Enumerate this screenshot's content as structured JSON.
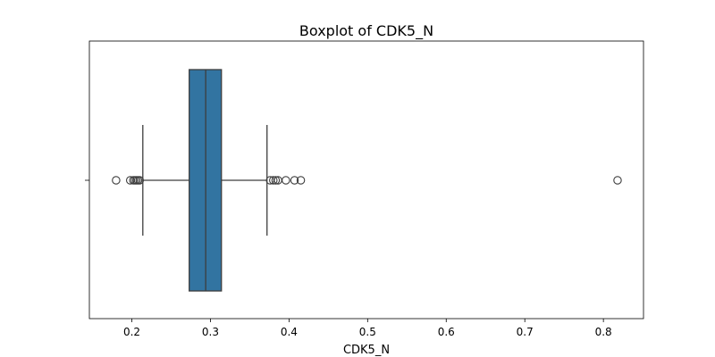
{
  "chart_data": {
    "type": "boxplot",
    "title": "Boxplot of CDK5_N",
    "xlabel": "CDK5_N",
    "ylabel": "",
    "orientation": "horizontal",
    "xlim": [
      0.146,
      0.851
    ],
    "xticks": [
      0.2,
      0.3,
      0.4,
      0.5,
      0.6,
      0.7,
      0.8
    ],
    "xtick_labels": [
      "0.2",
      "0.3",
      "0.4",
      "0.5",
      "0.6",
      "0.7",
      "0.8"
    ],
    "grid": false,
    "box": {
      "whisker_low": 0.214,
      "q1": 0.273,
      "median": 0.294,
      "q3": 0.314,
      "whisker_high": 0.372,
      "color": "#3274a1",
      "line_color": "#3d3d3d"
    },
    "outliers": [
      0.18,
      0.198,
      0.202,
      0.204,
      0.206,
      0.208,
      0.21,
      0.376,
      0.38,
      0.383,
      0.386,
      0.396,
      0.407,
      0.415,
      0.818
    ]
  }
}
